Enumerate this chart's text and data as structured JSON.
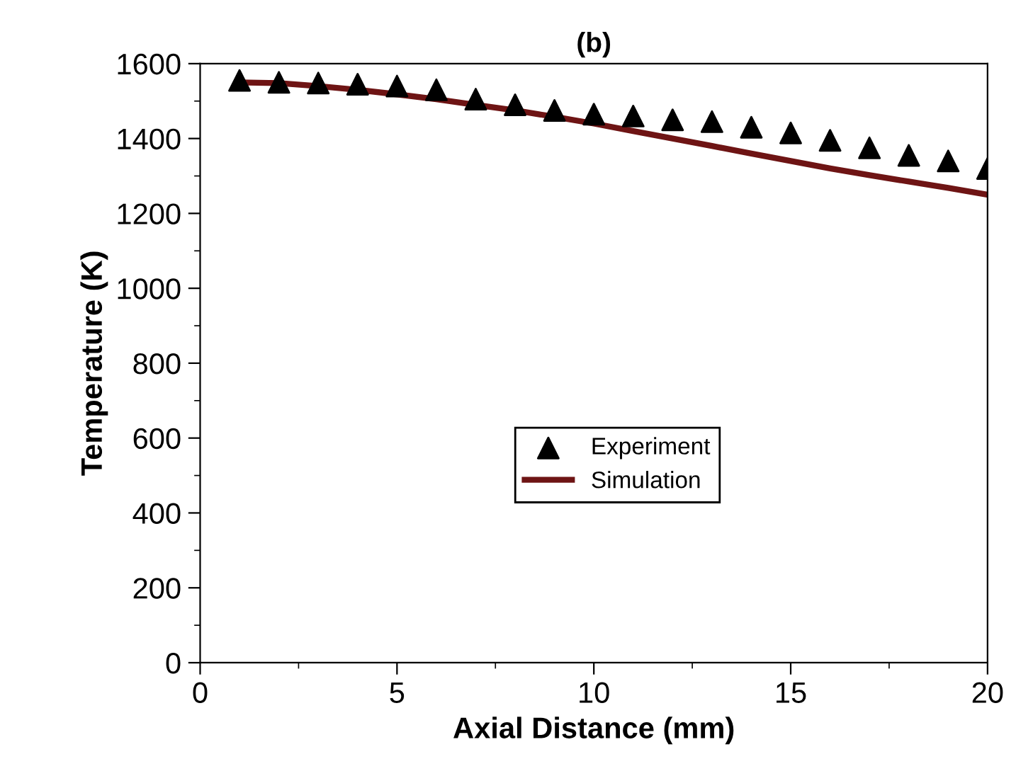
{
  "chart_data": {
    "type": "scatter",
    "title": "(b)",
    "xlabel": "Axial Distance (mm)",
    "ylabel": "Temperature (K)",
    "xlim": [
      0,
      20
    ],
    "xticks": [
      0,
      5,
      10,
      15,
      20
    ],
    "ylim": [
      0,
      1600
    ],
    "yticks": [
      0,
      200,
      400,
      600,
      800,
      1000,
      1200,
      1400,
      1600
    ],
    "grid": false,
    "legend": "center",
    "series": [
      {
        "name": "Experiment",
        "marker": "triangle",
        "color": "#000000",
        "x": [
          1,
          2,
          3,
          4,
          5,
          6,
          7,
          8,
          9,
          10,
          11,
          12,
          13,
          14,
          15,
          16,
          17,
          18,
          19,
          20
        ],
        "values": [
          1555,
          1550,
          1548,
          1545,
          1540,
          1530,
          1505,
          1490,
          1475,
          1465,
          1460,
          1450,
          1445,
          1430,
          1415,
          1395,
          1375,
          1355,
          1340,
          1320
        ]
      },
      {
        "name": "Simulation",
        "type": "line",
        "marker": "none",
        "line_style": "solid",
        "color": "#6e1414",
        "x": [
          1,
          2,
          3,
          4,
          5,
          6,
          7,
          8,
          9,
          10,
          11,
          12,
          13,
          14,
          15,
          16,
          17,
          18,
          19,
          20
        ],
        "values": [
          1550,
          1548,
          1540,
          1530,
          1518,
          1505,
          1490,
          1475,
          1458,
          1440,
          1420,
          1400,
          1380,
          1360,
          1340,
          1320,
          1302,
          1285,
          1268,
          1250
        ]
      }
    ]
  }
}
